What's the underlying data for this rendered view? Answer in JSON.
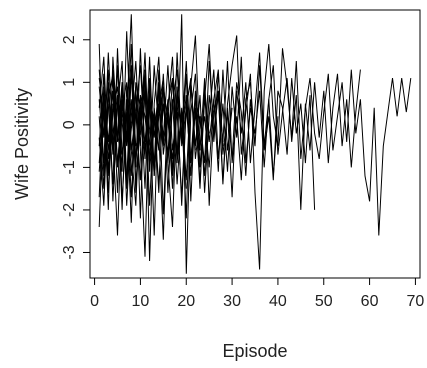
{
  "chart_data": {
    "type": "line",
    "title": "",
    "xlabel": "Episode",
    "ylabel": "Wife Positivity",
    "xlim": [
      -1,
      71
    ],
    "ylim": [
      -3.6,
      2.7
    ],
    "x_ticks": [
      0,
      10,
      20,
      30,
      40,
      50,
      60,
      70
    ],
    "x_tick_labels": [
      "0",
      "10",
      "20",
      "30",
      "40",
      "50",
      "60",
      "70"
    ],
    "y_ticks": [
      -3,
      -2,
      -1,
      0,
      1,
      2
    ],
    "y_tick_labels": [
      "-3",
      "-2",
      "-1",
      "0",
      "1",
      "2"
    ],
    "grid": false,
    "legend": "none",
    "color": "#000000",
    "series": [
      {
        "x": [
          1,
          2,
          3,
          4,
          5,
          6,
          7,
          8,
          9,
          10,
          11,
          12,
          13,
          14,
          15,
          16,
          17,
          18,
          19,
          20,
          21,
          22,
          23,
          24,
          25,
          26,
          27,
          28,
          29,
          30,
          31,
          32,
          33,
          34,
          35,
          36,
          37,
          38,
          39,
          40,
          41,
          42,
          43,
          44,
          45,
          46,
          47,
          48,
          49,
          50,
          51,
          52,
          53,
          54,
          55,
          56,
          57,
          58,
          59,
          60,
          61,
          62,
          63,
          64,
          65,
          66,
          67,
          68,
          69
        ],
        "y": [
          1.9,
          -1.2,
          0.8,
          -0.6,
          1.4,
          -1.8,
          0.2,
          2.6,
          -0.9,
          0.7,
          -1.5,
          1.1,
          -0.3,
          0.9,
          -2.1,
          0.4,
          1.6,
          -0.8,
          2.6,
          -3.5,
          0.3,
          1.2,
          -1.0,
          0.6,
          1.9,
          -0.4,
          0.8,
          -1.3,
          0.5,
          1.4,
          2.1,
          -0.7,
          0.3,
          1.2,
          -1.6,
          -3.4,
          0.8,
          1.9,
          0.2,
          -0.5,
          1.8,
          0.9,
          -0.3,
          1.5,
          -0.8,
          0.4,
          1.1,
          -0.2,
          -0.8,
          0.3,
          1.2,
          -0.6,
          0.2,
          1.0,
          -0.4,
          1.3,
          -0.2,
          0.6,
          -1.2,
          -1.8,
          0.4,
          -2.6,
          -0.5,
          0.3,
          1.1,
          0.2,
          1.1,
          0.3,
          1.1
        ]
      },
      {
        "x": [
          1,
          2,
          3,
          4,
          5,
          6,
          7,
          8,
          9,
          10,
          11,
          12,
          13,
          14,
          15,
          16,
          17,
          18,
          19,
          20,
          21,
          22,
          23,
          24,
          25,
          26,
          27,
          28,
          29,
          30,
          31,
          32,
          33,
          34,
          35,
          36,
          37,
          38,
          39,
          40,
          41,
          42,
          43,
          44,
          45,
          46,
          47,
          48,
          49,
          50,
          51,
          52,
          53,
          54,
          55,
          56,
          57,
          58
        ],
        "y": [
          -2.4,
          0.5,
          -1.1,
          1.3,
          -0.4,
          0.9,
          -1.9,
          0.2,
          1.5,
          -0.6,
          -3.1,
          0.8,
          -1.2,
          0.4,
          1.1,
          -0.9,
          0.6,
          -1.4,
          0.3,
          -2.2,
          1.0,
          -0.5,
          0.7,
          -1.6,
          0.2,
          1.3,
          -0.8,
          0.5,
          -1.1,
          0.9,
          -0.3,
          1.6,
          -0.9,
          0.4,
          -0.2,
          0.8,
          -1.0,
          0.6,
          1.4,
          -0.7,
          0.3,
          1.1,
          -0.4,
          0.7,
          -2.0,
          0.5,
          -0.6,
          1.0,
          -0.3,
          0.8,
          -0.9,
          0.4,
          1.2,
          -0.5,
          0.6,
          -1.0,
          0.3,
          1.3
        ]
      },
      {
        "x": [
          1,
          2,
          3,
          4,
          5,
          6,
          7,
          8,
          9,
          10,
          11,
          12,
          13,
          14,
          15,
          16,
          17,
          18,
          19,
          20,
          21,
          22,
          23,
          24,
          25,
          26,
          27,
          28,
          29,
          30,
          31,
          32,
          33,
          34,
          35,
          36,
          37,
          38,
          39,
          40,
          41,
          42,
          43,
          44,
          45,
          46,
          47,
          48
        ],
        "y": [
          0.6,
          -0.9,
          1.7,
          -0.3,
          -2.6,
          0.4,
          1.0,
          -1.2,
          0.8,
          -0.5,
          1.3,
          -3.2,
          0.5,
          1.6,
          -0.7,
          0.2,
          -1.5,
          0.9,
          -0.4,
          1.2,
          -1.8,
          0.6,
          0.1,
          -0.9,
          1.5,
          -0.2,
          0.7,
          -1.4,
          0.4,
          -0.8,
          1.0,
          0.3,
          -1.2,
          0.6,
          -0.5,
          1.4,
          -0.6,
          0.2,
          -1.3,
          0.8,
          0.4,
          -0.7,
          1.1,
          -0.2,
          0.5,
          -0.9,
          0.7,
          -2.0
        ]
      },
      {
        "x": [
          1,
          2,
          3,
          4,
          5,
          6,
          7,
          8,
          9,
          10,
          11,
          12,
          13,
          14,
          15,
          16,
          17,
          18,
          19,
          20,
          21,
          22,
          23,
          24,
          25,
          26,
          27,
          28,
          29,
          30,
          31,
          32,
          33,
          34,
          35,
          36,
          37,
          38,
          39,
          40
        ],
        "y": [
          -0.5,
          1.2,
          -1.6,
          0.3,
          0.9,
          -1.1,
          2.2,
          -0.6,
          -1.9,
          0.7,
          0.2,
          -0.9,
          1.4,
          -0.2,
          -2.7,
          0.5,
          1.1,
          -0.8,
          0.4,
          -1.3,
          0.9,
          2.1,
          -0.5,
          0.2,
          -1.0,
          0.6,
          1.3,
          -0.7,
          0.3,
          -1.7,
          0.8,
          -0.2,
          1.0,
          -0.9,
          0.4,
          1.7,
          -0.5,
          0.6,
          -1.2,
          0.2
        ]
      },
      {
        "x": [
          1,
          2,
          3,
          4,
          5,
          6,
          7,
          8,
          9,
          10,
          11,
          12,
          13,
          14,
          15,
          16,
          17,
          18,
          19,
          20,
          21,
          22,
          23,
          24,
          25,
          26,
          27,
          28,
          29,
          30,
          31,
          32,
          33,
          34,
          35
        ],
        "y": [
          1.3,
          -0.2,
          0.5,
          -1.4,
          1.8,
          -0.7,
          0.3,
          -2.3,
          1.0,
          0.4,
          -0.8,
          1.6,
          -1.1,
          0.2,
          0.9,
          -1.6,
          0.5,
          1.3,
          -0.3,
          0.7,
          -1.2,
          0.4,
          -0.6,
          1.1,
          -1.9,
          0.3,
          0.8,
          -0.4,
          1.5,
          -0.9,
          0.2,
          -1.3,
          0.6,
          1.0,
          -0.5
        ]
      },
      {
        "x": [
          1,
          2,
          3,
          4,
          5,
          6,
          7,
          8,
          9,
          10,
          11,
          12,
          13,
          14,
          15,
          16,
          17,
          18,
          19,
          20,
          21,
          22,
          23,
          24,
          25,
          26,
          27,
          28,
          29,
          30
        ],
        "y": [
          -1.7,
          0.9,
          -0.4,
          1.1,
          -1.0,
          0.6,
          -0.3,
          1.9,
          -1.4,
          0.2,
          0.8,
          -1.9,
          0.4,
          -0.6,
          1.2,
          -0.9,
          -2.4,
          0.7,
          -0.2,
          1.5,
          -0.8,
          0.3,
          -1.5,
          0.9,
          -0.4,
          0.6,
          -1.1,
          1.3,
          -0.6,
          0.4
        ]
      },
      {
        "x": [
          1,
          2,
          3,
          4,
          5,
          6,
          7,
          8,
          9,
          10,
          11,
          12,
          13,
          14,
          15,
          16,
          17,
          18,
          19,
          20,
          21,
          22,
          23,
          24,
          25,
          26,
          27,
          28
        ],
        "y": [
          0.2,
          -1.5,
          1.0,
          -0.7,
          0.4,
          1.5,
          -1.3,
          -0.1,
          0.9,
          -2.2,
          1.1,
          -0.4,
          -1.0,
          0.8,
          -0.3,
          1.4,
          -0.6,
          0.3,
          -1.7,
          0.5,
          1.0,
          -0.8,
          0.2,
          -1.2,
          0.7,
          -0.3,
          1.2,
          -0.5
        ]
      },
      {
        "x": [
          1,
          2,
          3,
          4,
          5,
          6,
          7,
          8,
          9,
          10,
          11,
          12,
          13,
          14,
          15,
          16,
          17,
          18,
          19,
          20,
          21,
          22,
          23,
          24,
          25
        ],
        "y": [
          -0.9,
          0.7,
          -2.0,
          1.6,
          -0.2,
          -0.9,
          0.6,
          -1.7,
          0.3,
          1.4,
          -0.6,
          0.5,
          -2.6,
          1.0,
          -0.4,
          0.3,
          -1.2,
          1.7,
          -0.5,
          0.4,
          -0.9,
          0.8,
          -1.4,
          0.6,
          -0.2
        ]
      },
      {
        "x": [
          1,
          2,
          3,
          4,
          5,
          6,
          7,
          8,
          9,
          10,
          11,
          12,
          13,
          14,
          15,
          16,
          17,
          18,
          19,
          20,
          21,
          22
        ],
        "y": [
          0.9,
          -0.3,
          1.3,
          -1.8,
          0.6,
          0.1,
          -1.3,
          1.2,
          -0.5,
          -0.2,
          1.7,
          -1.1,
          0.3,
          -1.6,
          0.9,
          0.1,
          -0.8,
          0.6,
          -1.9,
          0.4,
          1.1,
          -0.6
        ]
      },
      {
        "x": [
          1,
          2,
          3,
          4,
          5,
          6,
          7,
          8,
          9,
          10,
          11,
          12,
          13,
          14,
          15,
          16,
          17,
          18,
          19,
          20
        ],
        "y": [
          -1.1,
          0.4,
          -0.6,
          0.8,
          -1.6,
          1.0,
          -0.4,
          0.5,
          -1.0,
          1.8,
          -0.7,
          0.6,
          0.1,
          -1.4,
          0.5,
          -0.7,
          1.1,
          -0.9,
          0.3,
          -1.5
        ]
      },
      {
        "x": [
          1,
          2,
          3,
          4,
          5,
          6,
          7,
          8,
          9,
          10,
          11,
          12,
          13,
          14,
          15,
          16,
          17,
          18
        ],
        "y": [
          0.4,
          1.6,
          -0.8,
          -0.2,
          0.7,
          -2.0,
          0.9,
          -0.6,
          0.3,
          -1.3,
          0.8,
          -0.1,
          -0.9,
          1.3,
          -0.5,
          0.6,
          -1.1,
          0.8
        ]
      },
      {
        "x": [
          1,
          2,
          3,
          4,
          5,
          6,
          7,
          8,
          9,
          10,
          11,
          12,
          13,
          14,
          15
        ],
        "y": [
          -0.3,
          -1.9,
          0.6,
          1.2,
          -0.9,
          0.3,
          -0.5,
          1.4,
          -1.6,
          0.2,
          -0.4,
          0.9,
          -1.2,
          0.5,
          -0.6
        ]
      },
      {
        "x": [
          1,
          2,
          3,
          4,
          5,
          6,
          7,
          8,
          9,
          10,
          11,
          12
        ],
        "y": [
          1.1,
          0.2,
          -1.2,
          0.5,
          -0.3,
          1.0,
          -1.5,
          0.6,
          -0.8,
          0.3,
          1.2,
          -0.7
        ]
      }
    ]
  }
}
